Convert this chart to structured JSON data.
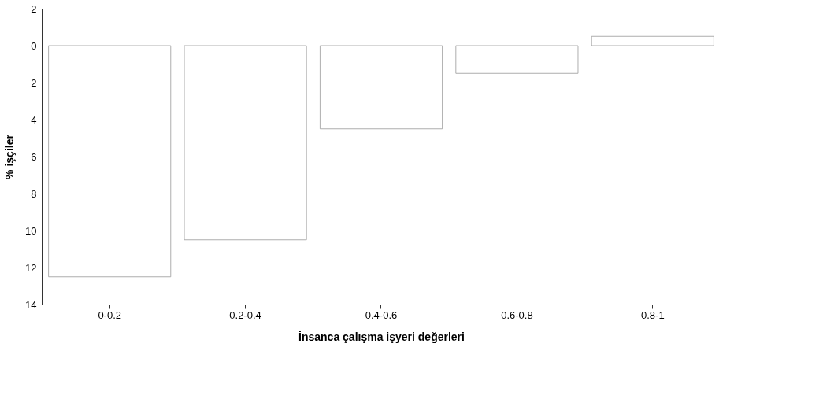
{
  "chart_data": {
    "type": "bar",
    "categories": [
      "0-0.2",
      "0.2-0.4",
      "0.4-0.6",
      "0.6-0.8",
      "0.8-1"
    ],
    "values": [
      -12.5,
      -10.5,
      -4.5,
      -1.5,
      0.5
    ],
    "color": "#ffffff",
    "xlabel": "İnsanca çalışma işyeri değerleri",
    "ylabel": "% işçiler",
    "ylim": [
      -14,
      2
    ],
    "yticks": [
      -14,
      -12,
      -10,
      -8,
      -6,
      -4,
      -2,
      0,
      2
    ],
    "grid": "y"
  }
}
